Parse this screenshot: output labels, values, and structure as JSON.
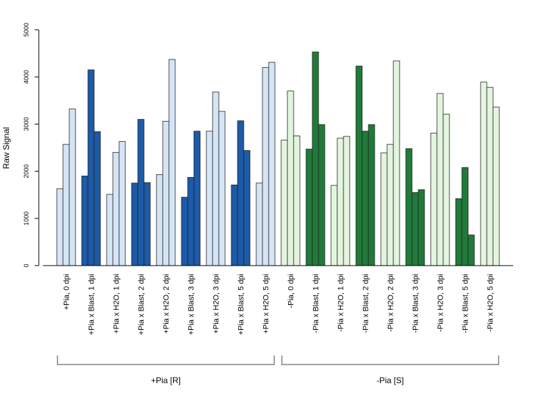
{
  "chart_data": {
    "type": "bar",
    "ylabel": "Raw Signal",
    "ylim": [
      0,
      5000
    ],
    "yticks": [
      0,
      1000,
      2000,
      3000,
      4000,
      5000
    ],
    "colors": {
      "pia_r_light": "#d5e5f5",
      "pia_r_dark": "#1d5aa8",
      "pia_s_light": "#e3f5de",
      "pia_s_dark": "#207a3a"
    },
    "categories": [
      {
        "label": "+Pia, 0 dpi",
        "values": [
          1630,
          2570,
          3320
        ],
        "color": "pia_r_light"
      },
      {
        "label": "+Pia x Blast, 1 dpi",
        "values": [
          1900,
          4150,
          2840
        ],
        "color": "pia_r_dark"
      },
      {
        "label": "+Pia x H2O, 1 dpi",
        "values": [
          1510,
          2400,
          2630
        ],
        "color": "pia_r_light"
      },
      {
        "label": "+Pia x Blast, 2 dpi",
        "values": [
          1750,
          3100,
          1760
        ],
        "color": "pia_r_dark"
      },
      {
        "label": "+Pia x H2O, 2 dpi",
        "values": [
          1930,
          3060,
          4370
        ],
        "color": "pia_r_light"
      },
      {
        "label": "+Pia x Blast, 3 dpi",
        "values": [
          1450,
          1870,
          2850
        ],
        "color": "pia_r_dark"
      },
      {
        "label": "+Pia x H2O, 3 dpi",
        "values": [
          2850,
          3680,
          3270
        ],
        "color": "pia_r_light"
      },
      {
        "label": "+Pia x Blast, 5 dpi",
        "values": [
          1710,
          3070,
          2440
        ],
        "color": "pia_r_dark"
      },
      {
        "label": "+Pia x H2O, 5 dpi",
        "values": [
          1750,
          4200,
          4310
        ],
        "color": "pia_r_light"
      },
      {
        "label": "-Pia, 0 dpi",
        "values": [
          2660,
          3700,
          2750
        ],
        "color": "pia_s_light"
      },
      {
        "label": "-Pia x Blast, 1 dpi",
        "values": [
          2470,
          4530,
          2990
        ],
        "color": "pia_s_dark"
      },
      {
        "label": "-Pia x H2O, 1 dpi",
        "values": [
          1700,
          2700,
          2740
        ],
        "color": "pia_s_light"
      },
      {
        "label": "-Pia x Blast, 2 dpi",
        "values": [
          4230,
          2850,
          2990
        ],
        "color": "pia_s_dark"
      },
      {
        "label": "-Pia x H2O, 2 dpi",
        "values": [
          2390,
          2570,
          4340
        ],
        "color": "pia_s_light"
      },
      {
        "label": "-Pia x Blast, 3 dpi",
        "values": [
          2480,
          1550,
          1610
        ],
        "color": "pia_s_dark"
      },
      {
        "label": "-Pia x H2O, 3 dpi",
        "values": [
          2810,
          3650,
          3210
        ],
        "color": "pia_s_light"
      },
      {
        "label": "-Pia x Blast, 5 dpi",
        "values": [
          1420,
          2080,
          650
        ],
        "color": "pia_s_dark"
      },
      {
        "label": "-Pia x H2O, 5 dpi",
        "values": [
          3890,
          3780,
          3360
        ],
        "color": "pia_s_light"
      }
    ],
    "groups": [
      {
        "label": "+Pia [R]",
        "from": 0,
        "to": 8
      },
      {
        "label": "-Pia [S]",
        "from": 9,
        "to": 17
      }
    ],
    "grid": false,
    "legend": "none"
  }
}
